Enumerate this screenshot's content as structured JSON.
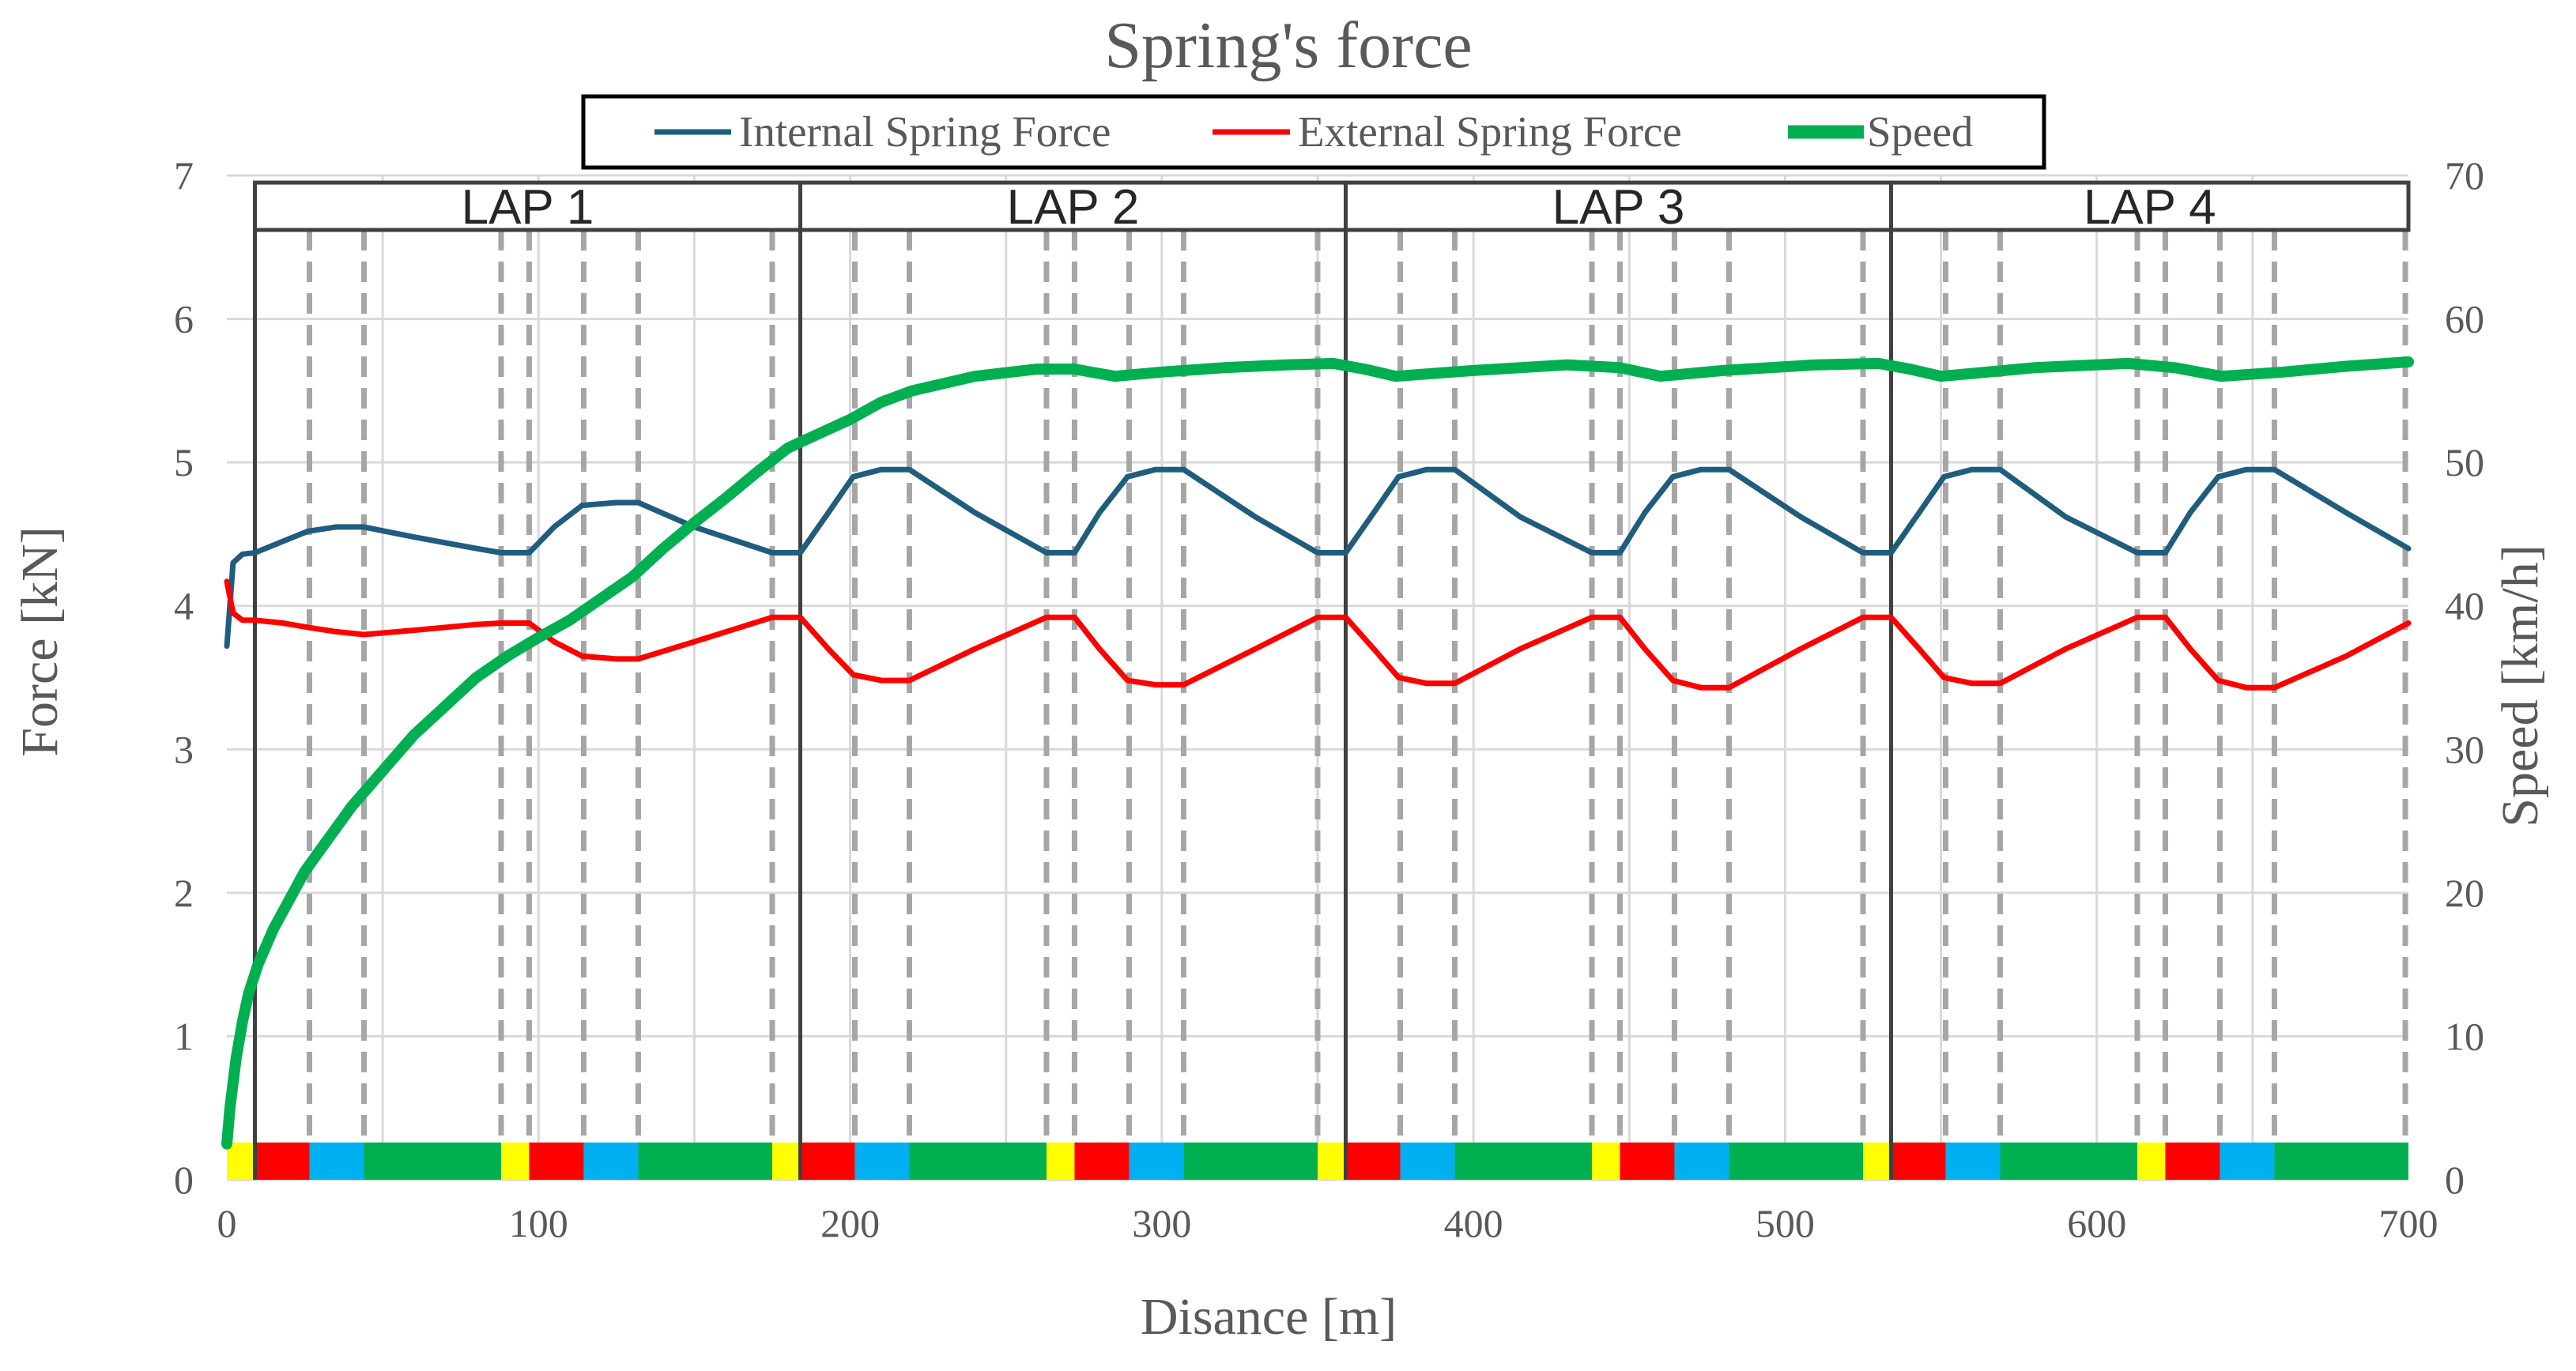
{
  "chart_data": {
    "type": "line",
    "title": "Spring's force",
    "xlabel": "Disance [m]",
    "ylabel_left": "Force [kN]",
    "ylabel_right": "Speed [km/h]",
    "xlim": [
      0,
      700
    ],
    "ylim_left": [
      0,
      7
    ],
    "ylim_right": [
      0,
      70
    ],
    "x_ticks": [
      "0",
      "100",
      "200",
      "300",
      "400",
      "500",
      "600",
      "700"
    ],
    "y_left_ticks": [
      "0",
      "1",
      "2",
      "3",
      "4",
      "5",
      "6",
      "7"
    ],
    "y_right_ticks": [
      "0",
      "10",
      "20",
      "30",
      "40",
      "50",
      "60",
      "70"
    ],
    "legend": {
      "position": "top-center",
      "entries": [
        {
          "name": "Internal Spring Force",
          "color": "#1f5d7f"
        },
        {
          "name": "External Spring Force",
          "color": "#ff0000"
        },
        {
          "name": "Speed",
          "color": "#00b050"
        }
      ]
    },
    "laps": [
      {
        "label": "LAP 1",
        "start": 9,
        "end": 184
      },
      {
        "label": "LAP 2",
        "start": 184,
        "end": 359
      },
      {
        "label": "LAP 3",
        "start": 359,
        "end": 534
      },
      {
        "label": "LAP 4",
        "start": 534,
        "end": 700
      }
    ],
    "segment_colors": {
      "yellow": "#ffff00",
      "red": "#ff0000",
      "blue": "#00b0f0",
      "green": "#00b050"
    },
    "segments": [
      {
        "from": 0,
        "to": 9,
        "color": "yellow"
      },
      {
        "from": 9,
        "to": 26.5,
        "color": "red"
      },
      {
        "from": 26.5,
        "to": 44,
        "color": "blue"
      },
      {
        "from": 44,
        "to": 88,
        "color": "green"
      },
      {
        "from": 88,
        "to": 97,
        "color": "yellow"
      },
      {
        "from": 97,
        "to": 114.5,
        "color": "red"
      },
      {
        "from": 114.5,
        "to": 132,
        "color": "blue"
      },
      {
        "from": 132,
        "to": 175,
        "color": "green"
      },
      {
        "from": 175,
        "to": 184,
        "color": "yellow"
      },
      {
        "from": 184,
        "to": 201.5,
        "color": "red"
      },
      {
        "from": 201.5,
        "to": 219,
        "color": "blue"
      },
      {
        "from": 219,
        "to": 263,
        "color": "green"
      },
      {
        "from": 263,
        "to": 272,
        "color": "yellow"
      },
      {
        "from": 272,
        "to": 289.5,
        "color": "red"
      },
      {
        "from": 289.5,
        "to": 307,
        "color": "blue"
      },
      {
        "from": 307,
        "to": 350,
        "color": "green"
      },
      {
        "from": 350,
        "to": 359,
        "color": "yellow"
      },
      {
        "from": 359,
        "to": 376.5,
        "color": "red"
      },
      {
        "from": 376.5,
        "to": 394,
        "color": "blue"
      },
      {
        "from": 394,
        "to": 438,
        "color": "green"
      },
      {
        "from": 438,
        "to": 447,
        "color": "yellow"
      },
      {
        "from": 447,
        "to": 464.5,
        "color": "red"
      },
      {
        "from": 464.5,
        "to": 482,
        "color": "blue"
      },
      {
        "from": 482,
        "to": 525,
        "color": "green"
      },
      {
        "from": 525,
        "to": 534,
        "color": "yellow"
      },
      {
        "from": 534,
        "to": 551.5,
        "color": "red"
      },
      {
        "from": 551.5,
        "to": 569,
        "color": "blue"
      },
      {
        "from": 569,
        "to": 613,
        "color": "green"
      },
      {
        "from": 613,
        "to": 622,
        "color": "yellow"
      },
      {
        "from": 622,
        "to": 639.5,
        "color": "red"
      },
      {
        "from": 639.5,
        "to": 657,
        "color": "blue"
      },
      {
        "from": 657,
        "to": 700,
        "color": "green"
      }
    ],
    "dashed_x": [
      26.5,
      44,
      88,
      97,
      114.5,
      132,
      175,
      201.5,
      219,
      263,
      272,
      289.5,
      307,
      350,
      376.5,
      394,
      438,
      447,
      464.5,
      482,
      525,
      551.5,
      569,
      613,
      622,
      639.5,
      657,
      699
    ],
    "series": [
      {
        "name": "Internal Spring Force",
        "axis": "left",
        "color": "#1f5d7f",
        "x": [
          0,
          2,
          5,
          9,
          18,
          26,
          35,
          44,
          60,
          80,
          88,
          97,
          105,
          114,
          125,
          132,
          150,
          175,
          184,
          193,
          201,
          210,
          219,
          240,
          263,
          272,
          280,
          289,
          298,
          307,
          330,
          350,
          359,
          368,
          376,
          385,
          394,
          415,
          438,
          447,
          455,
          464,
          473,
          482,
          505,
          525,
          534,
          543,
          551,
          560,
          569,
          590,
          613,
          622,
          630,
          639,
          648,
          657,
          680,
          700
        ],
        "y": [
          3.72,
          4.3,
          4.36,
          4.37,
          4.45,
          4.52,
          4.55,
          4.55,
          4.48,
          4.4,
          4.37,
          4.37,
          4.55,
          4.7,
          4.72,
          4.72,
          4.55,
          4.37,
          4.37,
          4.65,
          4.9,
          4.95,
          4.95,
          4.65,
          4.37,
          4.37,
          4.65,
          4.9,
          4.95,
          4.95,
          4.62,
          4.37,
          4.37,
          4.65,
          4.9,
          4.95,
          4.95,
          4.62,
          4.37,
          4.37,
          4.65,
          4.9,
          4.95,
          4.95,
          4.62,
          4.37,
          4.37,
          4.65,
          4.9,
          4.95,
          4.95,
          4.62,
          4.37,
          4.37,
          4.65,
          4.9,
          4.95,
          4.95,
          4.65,
          4.4
        ]
      },
      {
        "name": "External Spring Force",
        "axis": "left",
        "color": "#ff0000",
        "x": [
          0,
          2,
          5,
          9,
          18,
          26,
          35,
          44,
          60,
          80,
          88,
          97,
          105,
          114,
          125,
          132,
          150,
          175,
          184,
          193,
          201,
          210,
          219,
          240,
          263,
          272,
          280,
          289,
          298,
          307,
          330,
          350,
          359,
          368,
          376,
          385,
          394,
          415,
          438,
          447,
          455,
          464,
          473,
          482,
          505,
          525,
          534,
          543,
          551,
          560,
          569,
          590,
          613,
          622,
          630,
          639,
          648,
          657,
          680,
          700
        ],
        "y": [
          4.17,
          3.95,
          3.9,
          3.9,
          3.88,
          3.85,
          3.82,
          3.8,
          3.83,
          3.87,
          3.88,
          3.88,
          3.75,
          3.65,
          3.63,
          3.63,
          3.75,
          3.92,
          3.92,
          3.7,
          3.52,
          3.48,
          3.48,
          3.7,
          3.92,
          3.92,
          3.7,
          3.48,
          3.45,
          3.45,
          3.7,
          3.92,
          3.92,
          3.7,
          3.5,
          3.46,
          3.46,
          3.7,
          3.92,
          3.92,
          3.7,
          3.48,
          3.43,
          3.43,
          3.7,
          3.92,
          3.92,
          3.7,
          3.5,
          3.46,
          3.46,
          3.7,
          3.92,
          3.92,
          3.7,
          3.48,
          3.43,
          3.43,
          3.65,
          3.88
        ]
      },
      {
        "name": "Speed",
        "axis": "right",
        "color": "#00b050",
        "x": [
          0,
          1,
          3,
          5,
          7,
          10,
          15,
          20,
          25,
          30,
          40,
          50,
          60,
          70,
          80,
          90,
          100,
          110,
          120,
          130,
          140,
          150,
          160,
          170,
          180,
          190,
          200,
          210,
          220,
          240,
          260,
          272,
          285,
          300,
          320,
          340,
          355,
          365,
          375,
          400,
          430,
          447,
          460,
          480,
          510,
          530,
          540,
          550,
          560,
          580,
          610,
          625,
          640,
          660,
          680,
          700
        ],
        "y": [
          2.5,
          5,
          8.5,
          11,
          13,
          15,
          17.5,
          19.5,
          21.5,
          23,
          26,
          28.5,
          31,
          33,
          35,
          36.5,
          37.8,
          39,
          40.5,
          42,
          44,
          45.8,
          47.5,
          49.3,
          51,
          52,
          53,
          54.2,
          55,
          56,
          56.5,
          56.5,
          56,
          56.3,
          56.6,
          56.8,
          56.9,
          56.5,
          56,
          56.4,
          56.8,
          56.6,
          56,
          56.4,
          56.8,
          56.9,
          56.5,
          56,
          56.2,
          56.6,
          56.9,
          56.6,
          56,
          56.3,
          56.7,
          57
        ]
      }
    ]
  }
}
